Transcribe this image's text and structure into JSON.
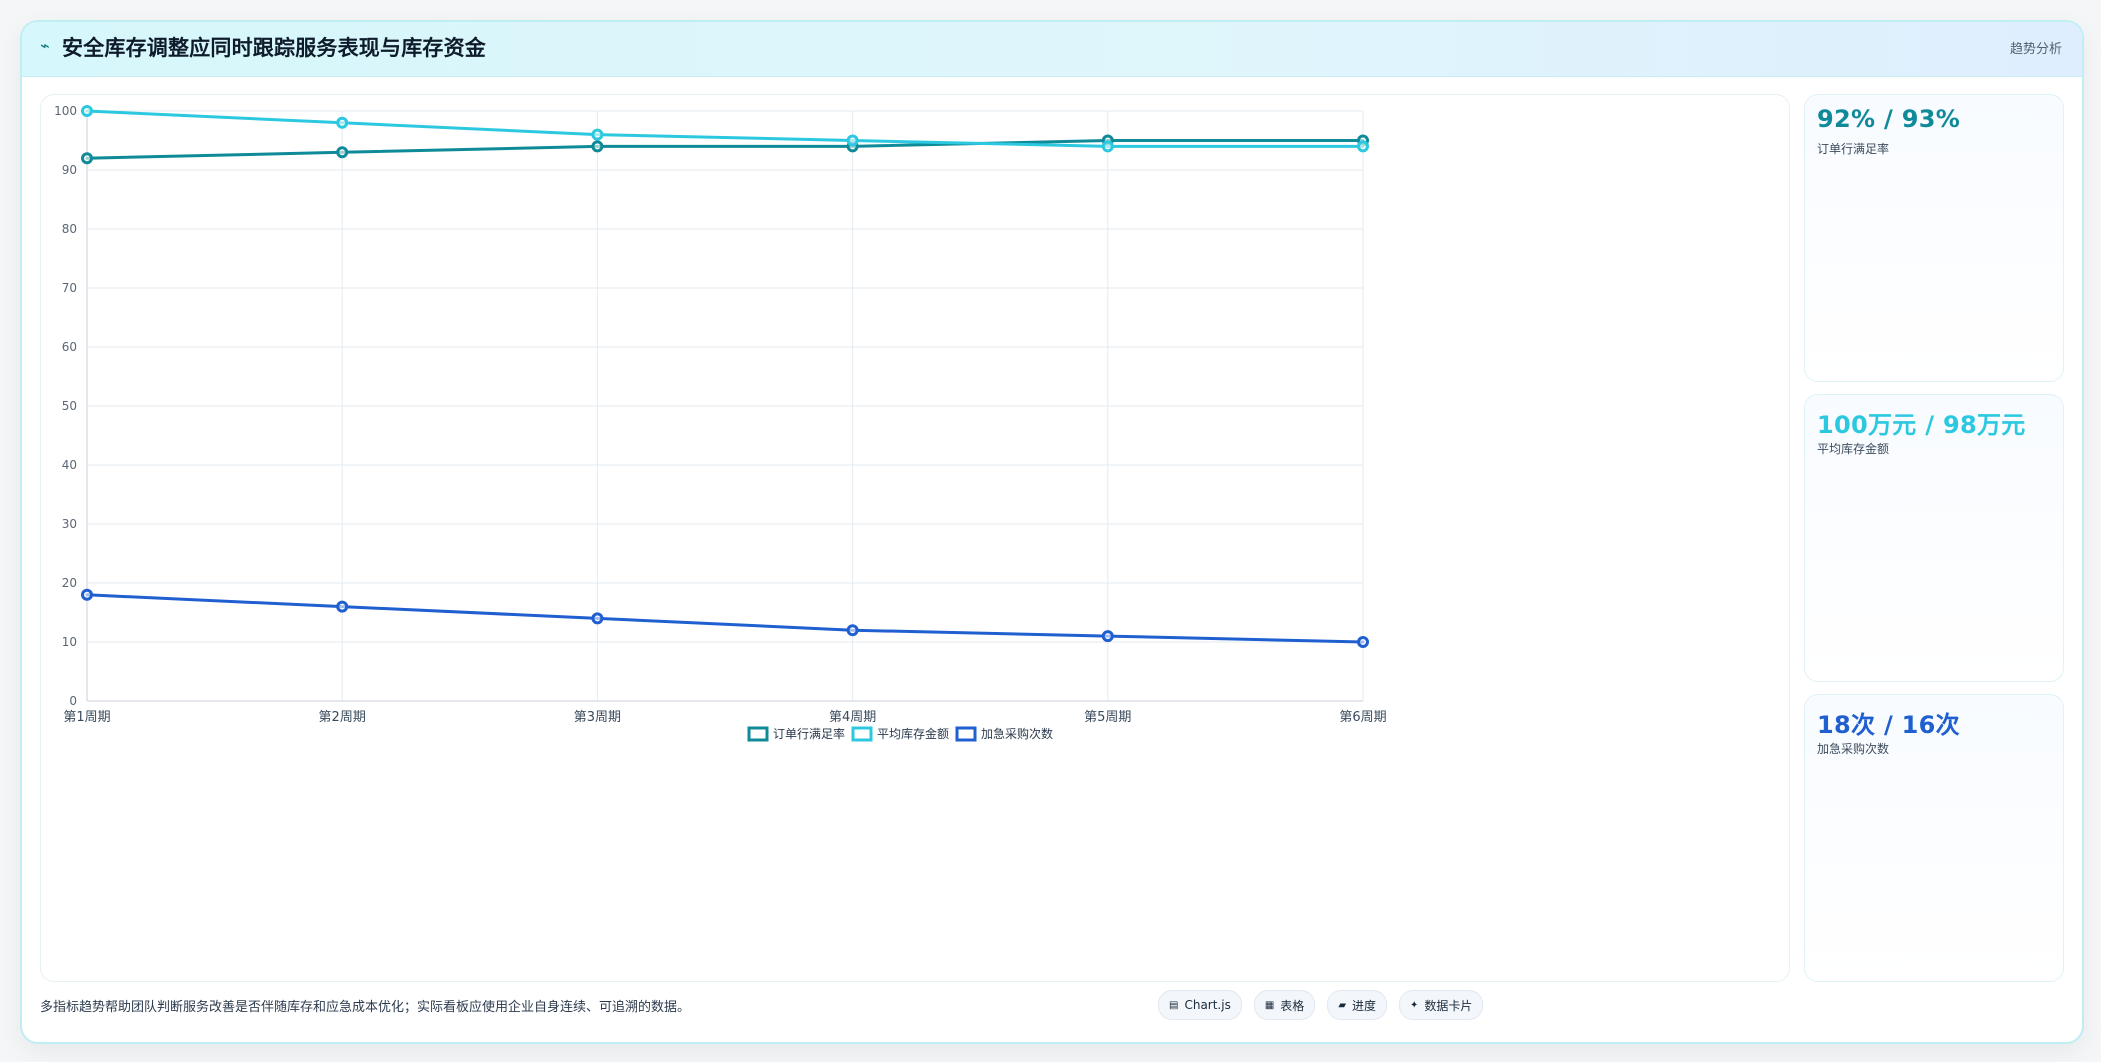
{
  "header": {
    "icon": "trend-line-icon",
    "title": "安全库存调整应同时跟踪服务表现与库存资金",
    "tag": "趋势分析"
  },
  "chart_data": {
    "type": "line",
    "categories": [
      "第1周期",
      "第2周期",
      "第3周期",
      "第4周期",
      "第5周期",
      "第6周期"
    ],
    "series": [
      {
        "name": "订单行满足率",
        "color": "#0f8a99",
        "values": [
          92,
          93,
          94,
          94,
          95,
          95
        ]
      },
      {
        "name": "平均库存金额",
        "color": "#2cc8df",
        "values": [
          100,
          98,
          96,
          95,
          94,
          94
        ]
      },
      {
        "name": "加急采购次数",
        "color": "#1f5fd0",
        "values": [
          18,
          16,
          14,
          12,
          11,
          10
        ]
      }
    ],
    "ylim": [
      0,
      100
    ],
    "yticks": [
      0,
      10,
      20,
      30,
      40,
      50,
      60,
      70,
      80,
      90,
      100
    ],
    "grid": true,
    "legend": "bottom"
  },
  "metrics": [
    {
      "value": "92% / 93%",
      "label": "订单行满足率",
      "color": "#0f8a99"
    },
    {
      "value": "100万元 / 98万元",
      "label": "平均库存金额",
      "color": "#2cc8df"
    },
    {
      "value": "18次 / 16次",
      "label": "加急采购次数",
      "color": "#1f5fd0"
    }
  ],
  "footer": {
    "note": "多指标趋势帮助团队判断服务改善是否伴随库存和应急成本优化；实际看板应使用企业自身连续、可追溯的数据。",
    "pills": [
      {
        "icon": "▤",
        "label": "Chart.js"
      },
      {
        "icon": "▦",
        "label": "表格"
      },
      {
        "icon": "▰",
        "label": "进度"
      },
      {
        "icon": "✦",
        "label": "数据卡片"
      }
    ]
  }
}
